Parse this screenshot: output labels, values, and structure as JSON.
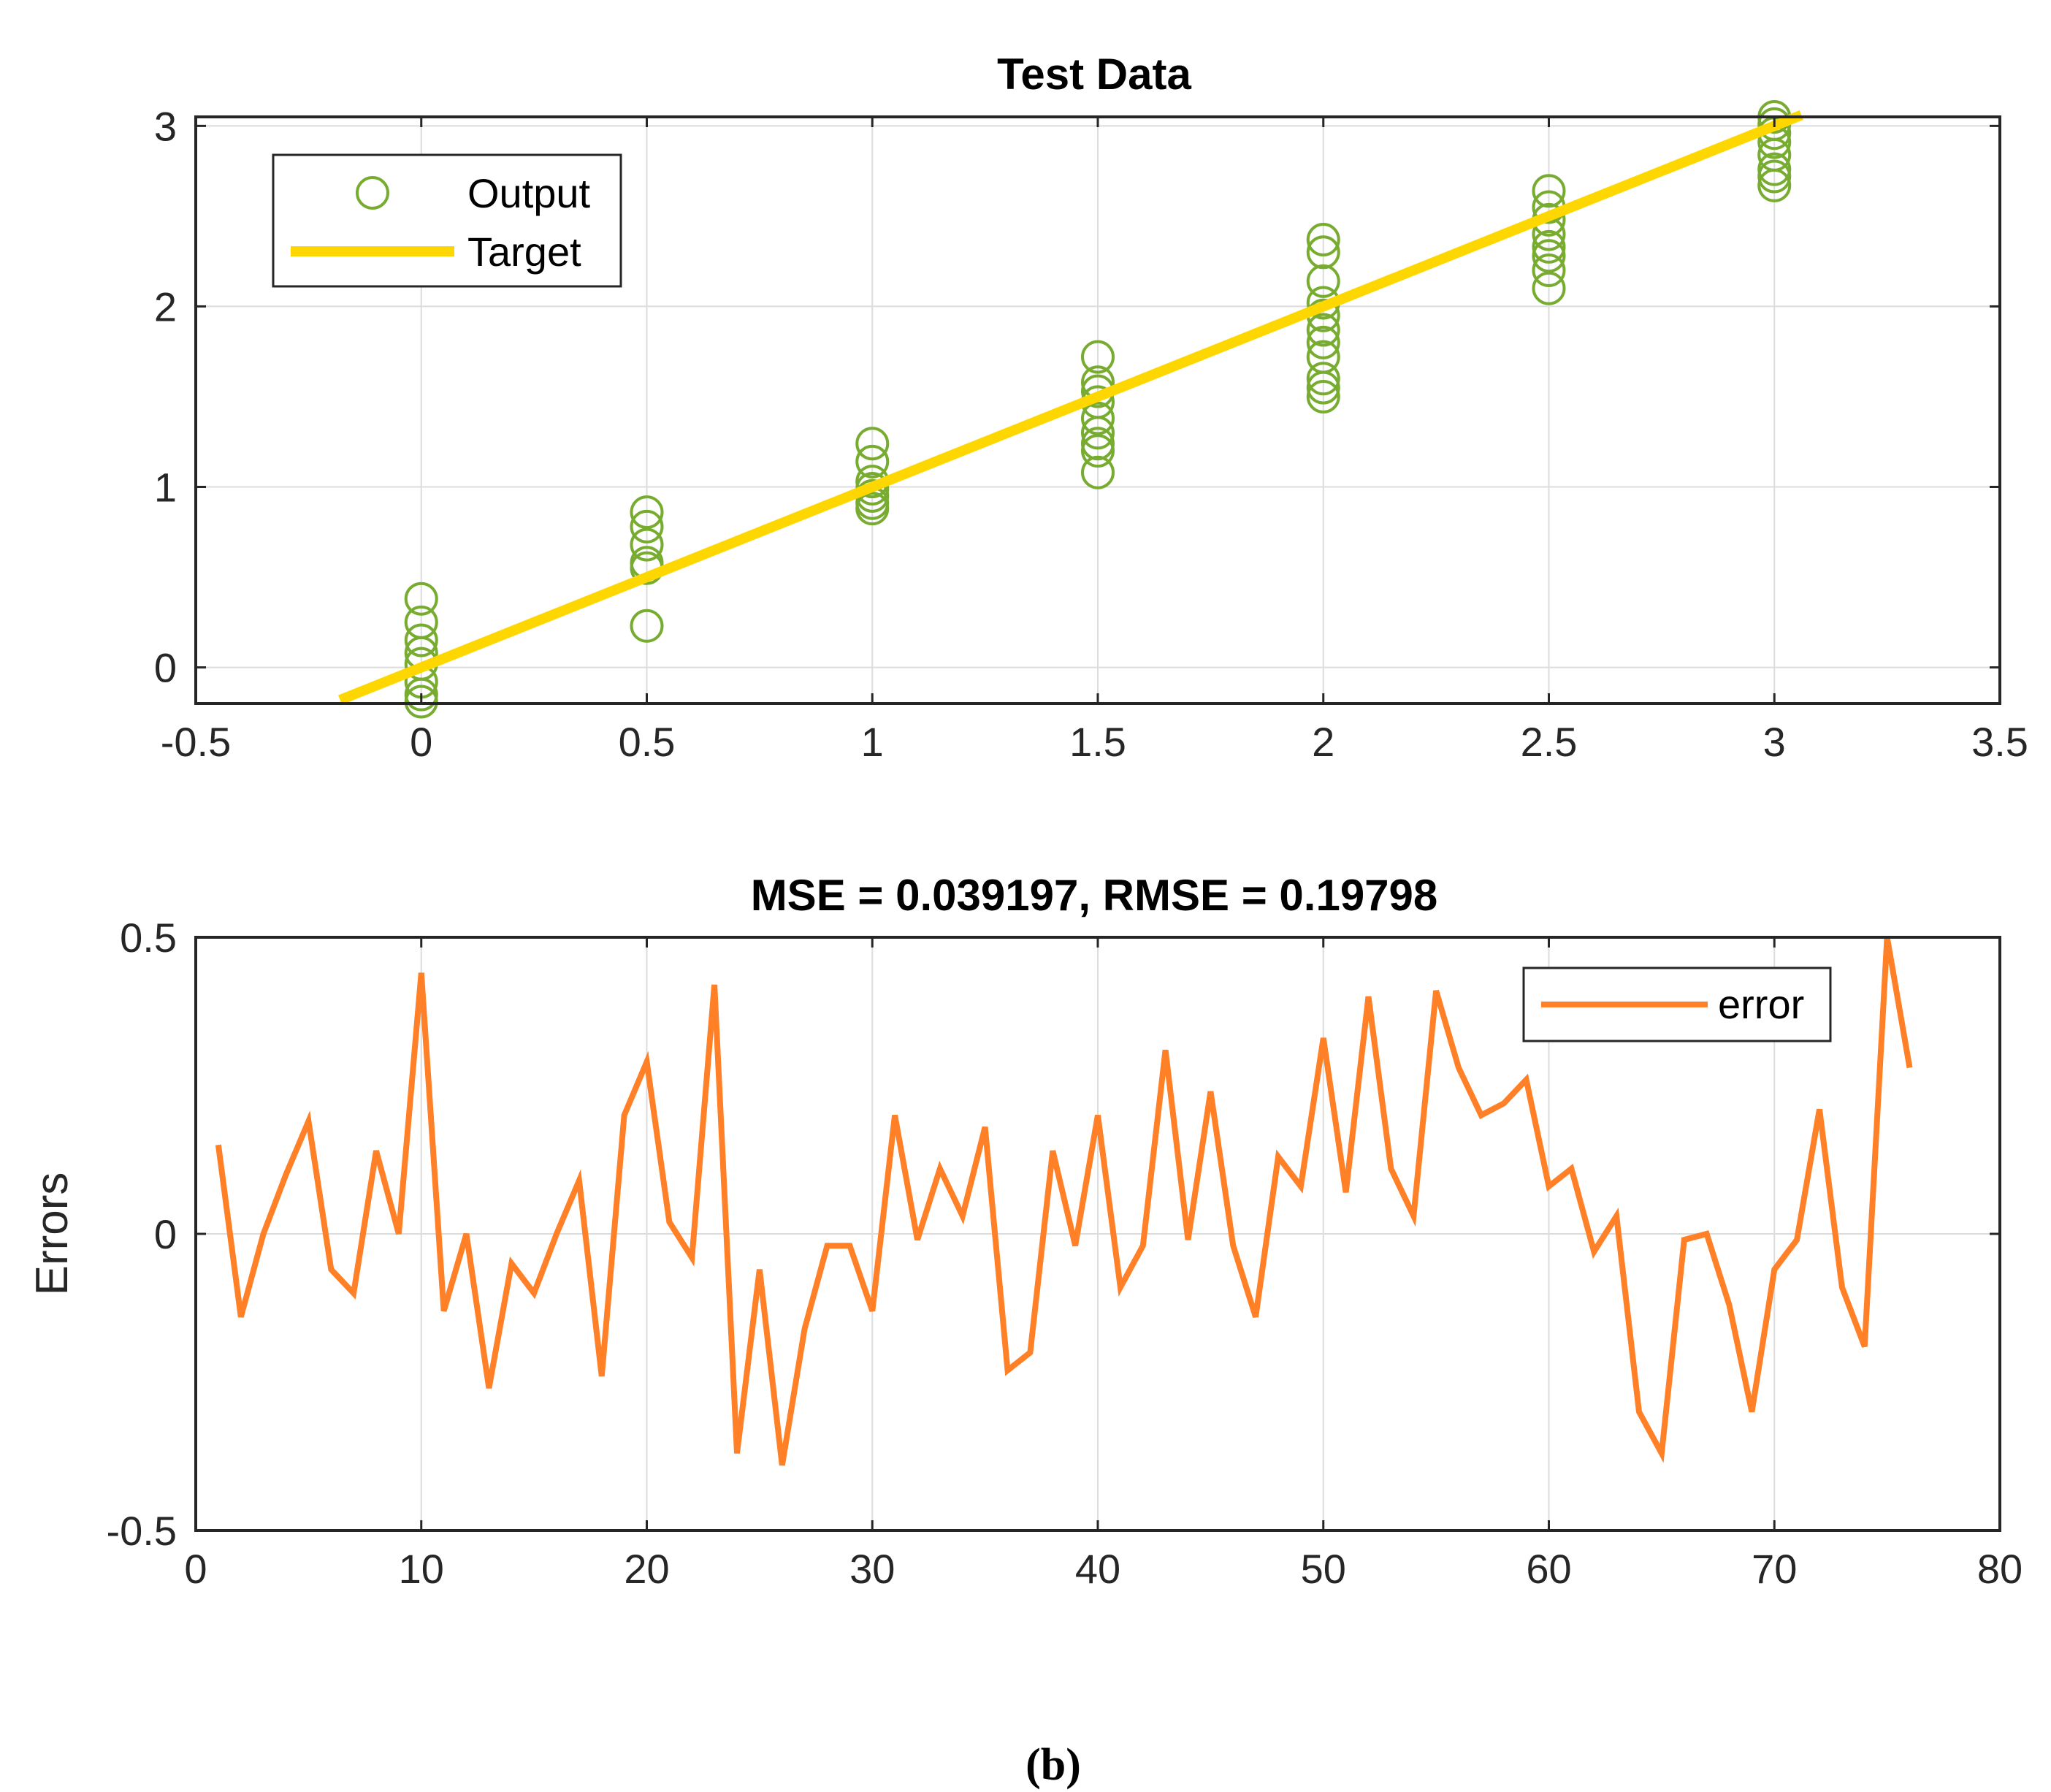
{
  "chart_data": [
    {
      "type": "scatter",
      "title": "Test Data",
      "xlabel": "",
      "ylabel": "",
      "xlim": [
        -0.5,
        3.5
      ],
      "ylim": [
        -0.2,
        3.05
      ],
      "xticks": [
        -0.5,
        0,
        0.5,
        1,
        1.5,
        2,
        2.5,
        3,
        3.5
      ],
      "xtick_labels": [
        "-0.5",
        "0",
        "0.5",
        "1",
        "1.5",
        "2",
        "2.5",
        "3",
        "3.5"
      ],
      "yticks": [
        0,
        1,
        2,
        3
      ],
      "ytick_labels": [
        "0",
        "1",
        "2",
        "3"
      ],
      "grid": true,
      "legend_position": "top-left",
      "series": [
        {
          "name": "Output",
          "style": "markers",
          "color": "#77AC30",
          "points": [
            [
              0,
              0.38
            ],
            [
              0,
              0.25
            ],
            [
              0,
              0.15
            ],
            [
              0,
              0.08
            ],
            [
              0,
              0.02
            ],
            [
              0,
              -0.08
            ],
            [
              0,
              -0.15
            ],
            [
              0,
              -0.19
            ],
            [
              0.5,
              0.86
            ],
            [
              0.5,
              0.78
            ],
            [
              0.5,
              0.68
            ],
            [
              0.5,
              0.58
            ],
            [
              0.5,
              0.55
            ],
            [
              0.5,
              0.23
            ],
            [
              1,
              1.24
            ],
            [
              1,
              1.14
            ],
            [
              1,
              1.03
            ],
            [
              1,
              0.99
            ],
            [
              1,
              0.95
            ],
            [
              1,
              0.91
            ],
            [
              1,
              0.88
            ],
            [
              1.5,
              1.72
            ],
            [
              1.5,
              1.58
            ],
            [
              1.5,
              1.53
            ],
            [
              1.5,
              1.47
            ],
            [
              1.5,
              1.38
            ],
            [
              1.5,
              1.3
            ],
            [
              1.5,
              1.24
            ],
            [
              1.5,
              1.2
            ],
            [
              1.5,
              1.08
            ],
            [
              2,
              2.37
            ],
            [
              2,
              2.3
            ],
            [
              2,
              2.14
            ],
            [
              2,
              2.02
            ],
            [
              2,
              1.95
            ],
            [
              2,
              1.87
            ],
            [
              2,
              1.8
            ],
            [
              2,
              1.72
            ],
            [
              2,
              1.6
            ],
            [
              2,
              1.55
            ],
            [
              2,
              1.5
            ],
            [
              2.5,
              2.64
            ],
            [
              2.5,
              2.55
            ],
            [
              2.5,
              2.48
            ],
            [
              2.5,
              2.4
            ],
            [
              2.5,
              2.33
            ],
            [
              2.5,
              2.28
            ],
            [
              2.5,
              2.2
            ],
            [
              2.5,
              2.1
            ],
            [
              3,
              3.05
            ],
            [
              3,
              3.01
            ],
            [
              3,
              2.96
            ],
            [
              3,
              2.91
            ],
            [
              3,
              2.84
            ],
            [
              3,
              2.76
            ],
            [
              3,
              2.72
            ],
            [
              3,
              2.67
            ]
          ]
        },
        {
          "name": "Target",
          "style": "line",
          "color": "#FFD700",
          "points": [
            [
              -0.18,
              -0.18
            ],
            [
              3.06,
              3.06
            ]
          ]
        }
      ]
    },
    {
      "type": "line",
      "title": "MSE = 0.039197, RMSE = 0.19798",
      "xlabel": "",
      "ylabel": "Errors",
      "xlim": [
        0,
        80
      ],
      "ylim": [
        -0.5,
        0.5
      ],
      "xticks": [
        0,
        10,
        20,
        30,
        40,
        50,
        60,
        70,
        80
      ],
      "xtick_labels": [
        "0",
        "10",
        "20",
        "30",
        "40",
        "50",
        "60",
        "70",
        "80"
      ],
      "yticks": [
        -0.5,
        0,
        0.5
      ],
      "ytick_labels": [
        "-0.5",
        "0",
        "0.5"
      ],
      "grid": true,
      "legend_position": "top-right",
      "series": [
        {
          "name": "error",
          "color": "#FF8026",
          "x": [
            1,
            2,
            3,
            4,
            5,
            6,
            7,
            8,
            9,
            10,
            11,
            12,
            13,
            14,
            15,
            16,
            17,
            18,
            19,
            20,
            21,
            22,
            23,
            24,
            25,
            26,
            27,
            28,
            29,
            30,
            31,
            32,
            33,
            34,
            35,
            36,
            37,
            38,
            39,
            40,
            41,
            42,
            43,
            44,
            45,
            46,
            47,
            48,
            49,
            50,
            51,
            52,
            53,
            54,
            55,
            56,
            57,
            58,
            59,
            60,
            61,
            62,
            63,
            64,
            65,
            66,
            67,
            68,
            69,
            70,
            71,
            72,
            73,
            74,
            75,
            76
          ],
          "values": [
            0.15,
            -0.14,
            0,
            0.1,
            0.19,
            -0.06,
            -0.1,
            0.14,
            0,
            0.44,
            -0.13,
            0,
            -0.26,
            -0.05,
            -0.1,
            0,
            0.09,
            -0.24,
            0.2,
            0.29,
            0.02,
            -0.04,
            0.42,
            -0.37,
            -0.06,
            -0.39,
            -0.16,
            -0.02,
            -0.02,
            -0.13,
            0.2,
            -0.01,
            0.11,
            0.03,
            0.18,
            -0.23,
            -0.2,
            0.14,
            -0.02,
            0.2,
            -0.09,
            -0.02,
            0.31,
            -0.01,
            0.24,
            -0.02,
            -0.14,
            0.13,
            0.08,
            0.33,
            0.07,
            0.4,
            0.11,
            0.03,
            0.41,
            0.28,
            0.2,
            0.22,
            0.26,
            0.08,
            0.11,
            -0.03,
            0.03,
            -0.3,
            -0.37,
            -0.01,
            0,
            -0.12,
            -0.3,
            -0.06,
            -0.01,
            0.21,
            -0.09,
            -0.19,
            0.5,
            0.28
          ]
        }
      ]
    }
  ],
  "caption": "(b)"
}
